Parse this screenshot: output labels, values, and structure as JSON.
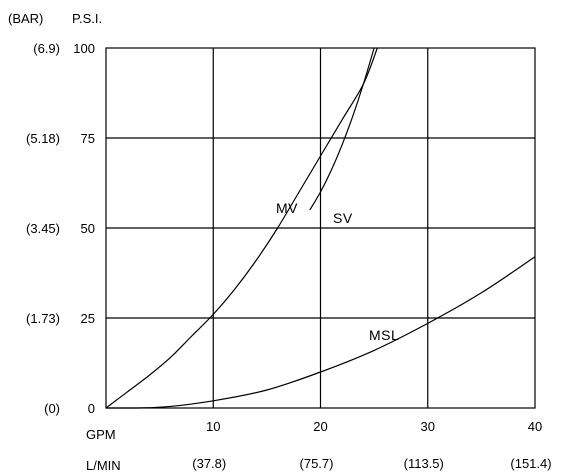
{
  "chart_data": {
    "type": "line",
    "title": "",
    "y_unit_bar": "(BAR)",
    "y_unit_psi": "P.S.I.",
    "x_unit_gpm": "GPM",
    "x_unit_lmin": "L/MIN",
    "xlim": [
      0,
      40
    ],
    "ylim": [
      0,
      100
    ],
    "grid": true,
    "x_ticks": [
      "10",
      "20",
      "30",
      "40"
    ],
    "x_tick_values": [
      10,
      20,
      30,
      40
    ],
    "x_ticks_lmin": [
      "(37.8)",
      "(75.7)",
      "(113.5)",
      "(151.4)"
    ],
    "y_ticks_psi": [
      "0",
      "25",
      "50",
      "75",
      "100"
    ],
    "y_tick_values": [
      0,
      25,
      50,
      75,
      100
    ],
    "y_ticks_bar": [
      "(0)",
      "(1.73)",
      "(3.45)",
      "(5.18)",
      "(6.9)"
    ],
    "series": [
      {
        "name": "MV",
        "x": [
          0,
          2,
          4,
          6,
          8,
          10,
          12,
          14,
          16,
          18,
          20,
          22,
          24,
          25.3
        ],
        "y": [
          0,
          4.5,
          9,
          14,
          20,
          26,
          33,
          41,
          50,
          60,
          70,
          80,
          90,
          100
        ]
      },
      {
        "name": "SV",
        "x": [
          19,
          20,
          21,
          22,
          23,
          24,
          25
        ],
        "y": [
          55,
          60,
          66,
          73,
          81,
          90,
          100
        ]
      },
      {
        "name": "MSL",
        "x": [
          0,
          5,
          10,
          15,
          20,
          25,
          30,
          35,
          40
        ],
        "y": [
          0,
          0.2,
          2,
          5,
          10,
          16,
          23.5,
          32,
          42
        ]
      }
    ]
  }
}
